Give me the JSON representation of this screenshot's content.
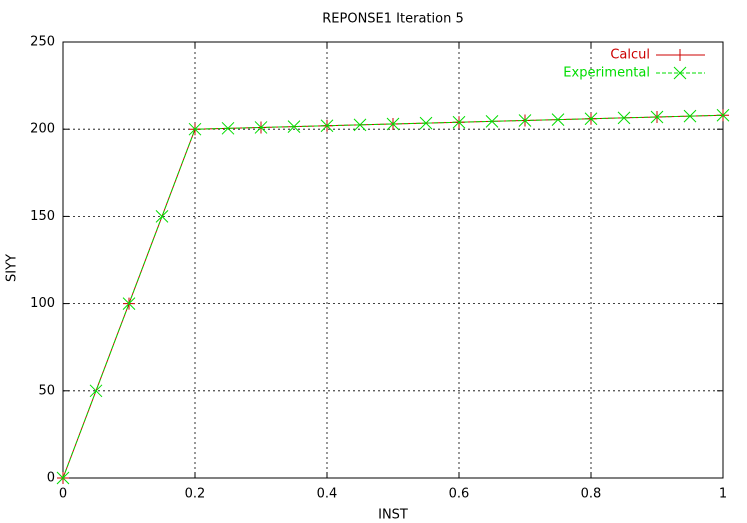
{
  "chart_data": {
    "type": "line",
    "title": "REPONSE1  Iteration 5",
    "x_label": "INST",
    "y_label": "SIYY",
    "series": [
      {
        "name": "Calcul",
        "color": "#cc0000",
        "marker": "plus",
        "dash": false,
        "x": [
          0,
          0.1,
          0.2,
          0.3,
          0.4,
          0.5,
          0.6,
          0.7,
          0.8,
          0.9,
          1
        ],
        "values": [
          0,
          100,
          200,
          201,
          202,
          203,
          204,
          205,
          206,
          207,
          208
        ]
      },
      {
        "name": "Experimental",
        "color": "#00dd00",
        "marker": "cross",
        "dash": true,
        "x": [
          0,
          0.05,
          0.1,
          0.15,
          0.2,
          0.25,
          0.3,
          0.35,
          0.4,
          0.45,
          0.5,
          0.55,
          0.6,
          0.65,
          0.7,
          0.75,
          0.8,
          0.85,
          0.9,
          0.95,
          1
        ],
        "values": [
          0,
          50,
          100,
          150,
          200,
          200.5,
          201,
          201.5,
          202,
          202.5,
          203,
          203.5,
          204,
          204.5,
          205,
          205.5,
          206,
          206.5,
          207,
          207.5,
          208
        ]
      }
    ],
    "xlim": [
      0,
      1
    ],
    "xticks": [
      0,
      0.2,
      0.4,
      0.6,
      0.8,
      1
    ],
    "ylim": [
      0,
      250
    ],
    "yticks": [
      0,
      50,
      100,
      150,
      200,
      250
    ],
    "grid": true,
    "legend": "top-right"
  }
}
